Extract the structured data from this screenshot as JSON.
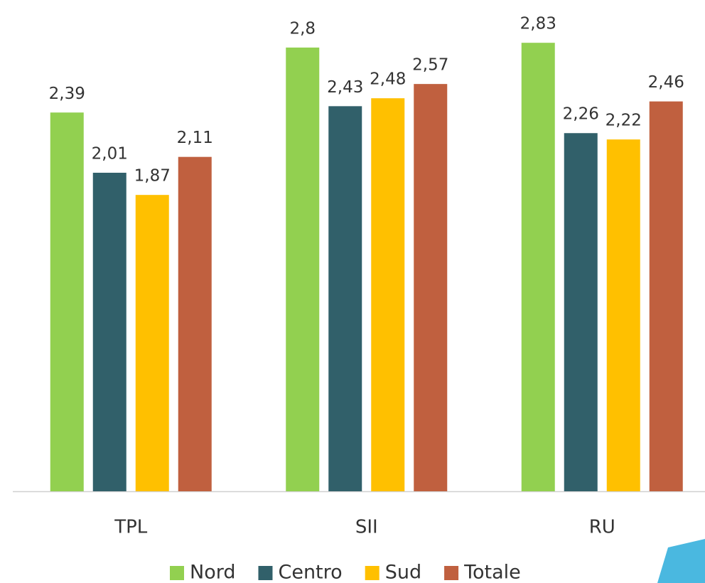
{
  "chart_data": {
    "type": "bar",
    "categories": [
      "TPL",
      "SII",
      "RU"
    ],
    "series": [
      {
        "name": "Nord",
        "color": "#92d050",
        "values": [
          2.39,
          2.8,
          2.83
        ],
        "value_labels": [
          "2,39",
          "2,8",
          "2,83"
        ]
      },
      {
        "name": "Centro",
        "color": "#31606a",
        "values": [
          2.01,
          2.43,
          2.26
        ],
        "value_labels": [
          "2,01",
          "2,43",
          "2,26"
        ]
      },
      {
        "name": "Sud",
        "color": "#ffc000",
        "values": [
          1.87,
          2.48,
          2.22
        ],
        "value_labels": [
          "1,87",
          "2,48",
          "2,22"
        ]
      },
      {
        "name": "Totale",
        "color": "#c0603f",
        "values": [
          2.11,
          2.57,
          2.46
        ],
        "value_labels": [
          "2,11",
          "2,57",
          "2,46"
        ]
      }
    ],
    "ylim": [
      0,
      3.1
    ],
    "legend": "bottom"
  }
}
